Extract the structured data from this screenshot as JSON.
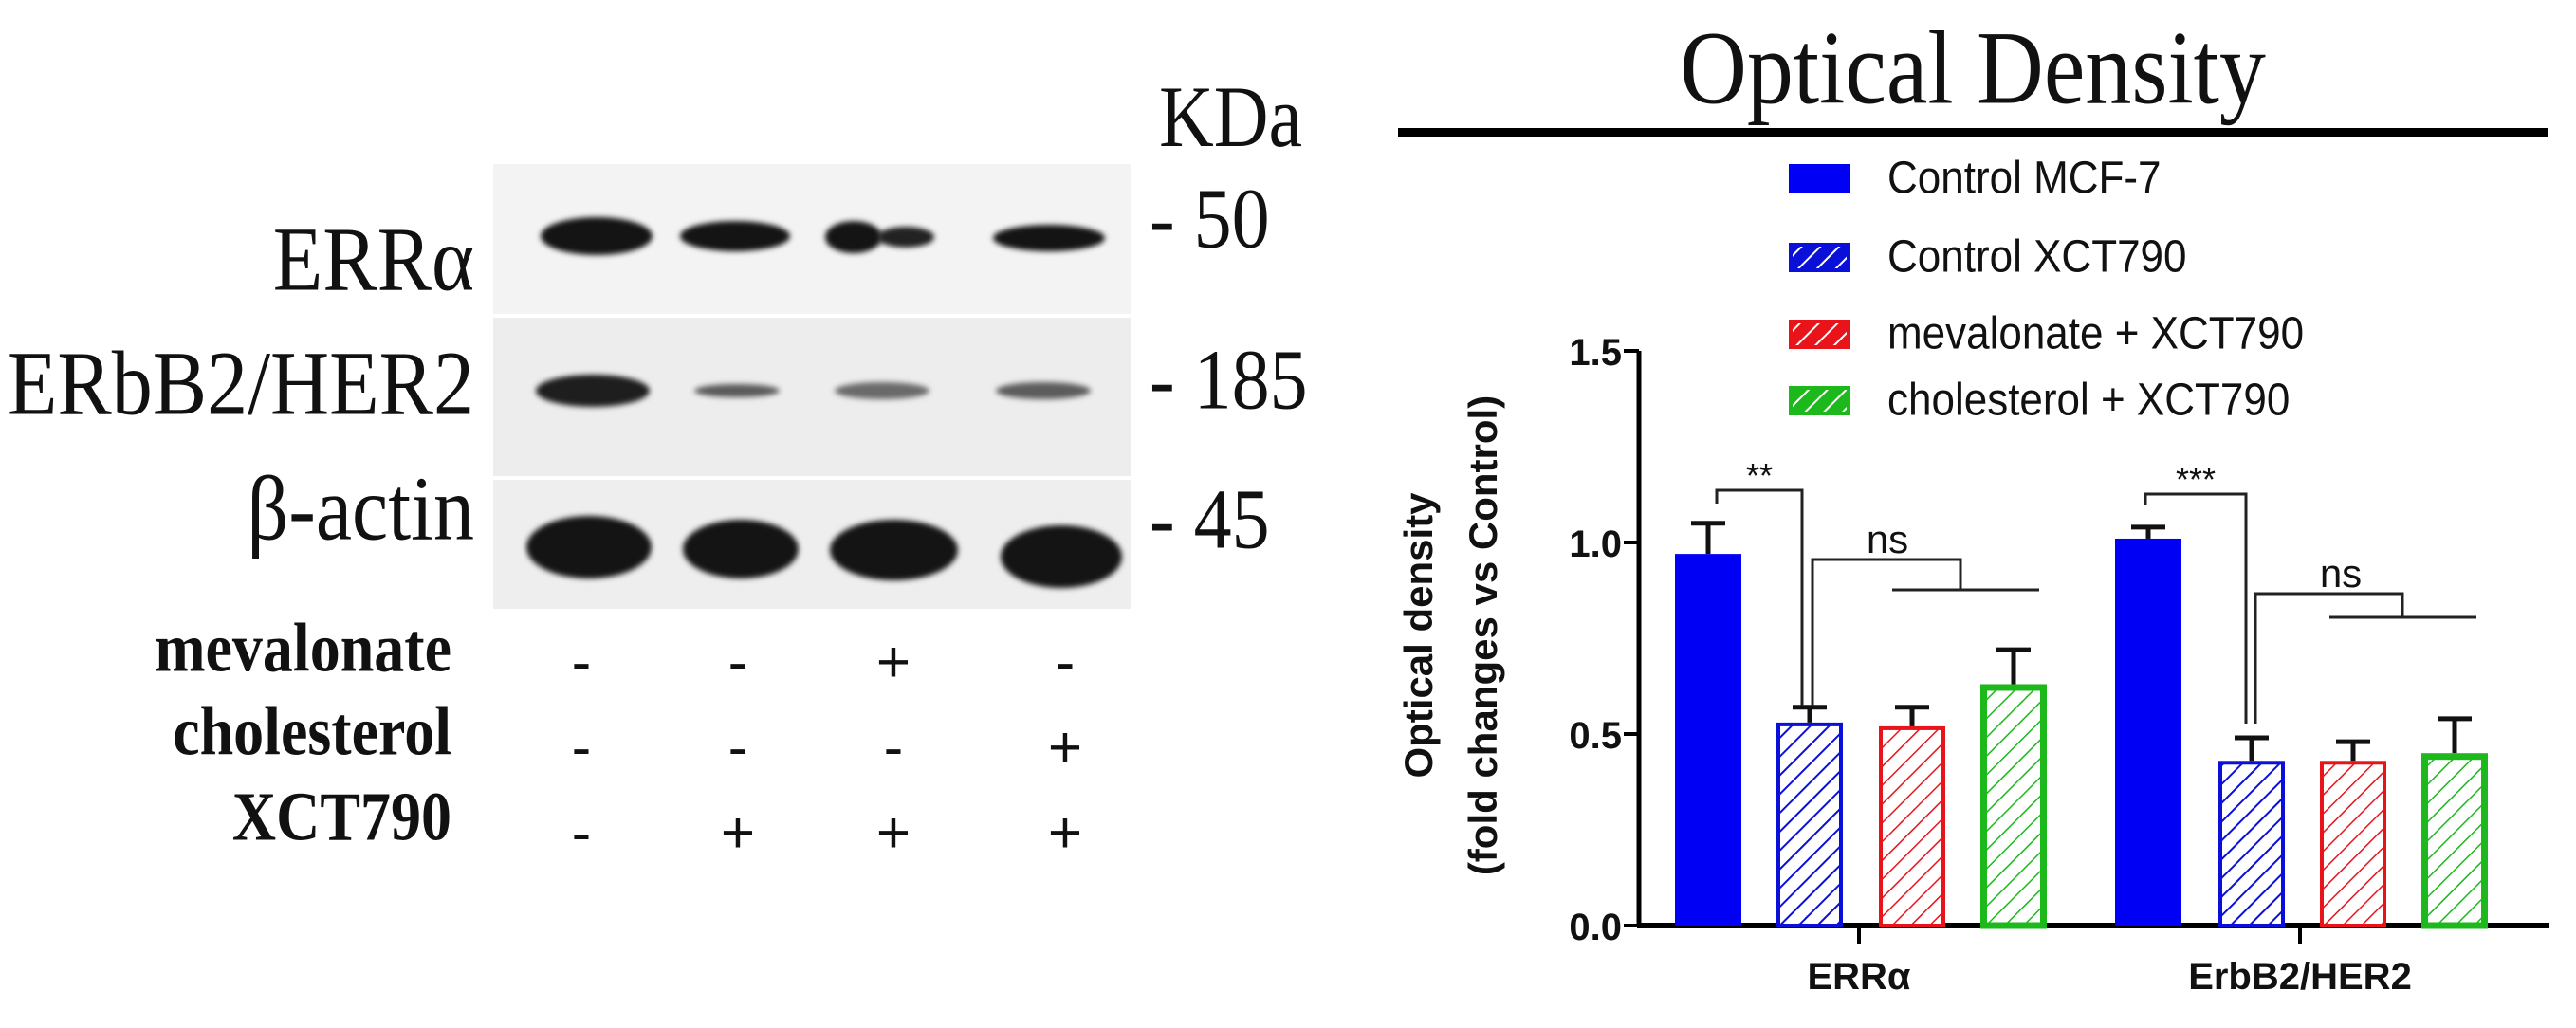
{
  "blot": {
    "kda_header": "KDa",
    "proteins": [
      {
        "label": "ERRα",
        "marker": "- 50"
      },
      {
        "label": "ERbB2/HER2",
        "marker": "- 185"
      },
      {
        "label": "β-actin",
        "marker": "- 45"
      }
    ],
    "treatments": [
      {
        "label": "mevalonate",
        "signs": [
          "-",
          "-",
          "+",
          "-"
        ]
      },
      {
        "label": "cholesterol",
        "signs": [
          "-",
          "-",
          "-",
          "+"
        ]
      },
      {
        "label": "XCT790",
        "signs": [
          "-",
          "+",
          "+",
          "+"
        ]
      }
    ]
  },
  "chart": {
    "title": "Optical Density",
    "ylabel_line1": "Optical density",
    "ylabel_line2": "(fold changes vs Control)",
    "ticks": [
      "0.0",
      "0.5",
      "1.0",
      "1.5"
    ],
    "categories": [
      "ERRα",
      "ErbB2/HER2"
    ],
    "legend": [
      {
        "label": "Control MCF-7",
        "color": "#0000f5",
        "hatched": false
      },
      {
        "label": "Control XCT790",
        "color": "#0a10d8",
        "hatched": true
      },
      {
        "label": "mevalonate + XCT790",
        "color": "#e8141a",
        "hatched": true
      },
      {
        "label": "cholesterol + XCT790",
        "color": "#1cb81c",
        "hatched": true
      }
    ],
    "significance": {
      "errα_vs_control": "**",
      "errα_treatments": "ns",
      "erbb2_vs_control": "***",
      "erbb2_treatments": "ns"
    }
  },
  "chart_data": {
    "type": "bar",
    "title": "Optical Density",
    "xlabel": "",
    "ylabel": "Optical density (fold changes vs Control)",
    "ylim": [
      0,
      1.5
    ],
    "yticks": [
      0.0,
      0.5,
      1.0,
      1.5
    ],
    "categories": [
      "ERRα",
      "ErbB2/HER2"
    ],
    "series": [
      {
        "name": "Control MCF-7",
        "values": [
          0.97,
          1.01
        ],
        "errors": [
          0.08,
          0.03
        ],
        "color": "#0000f5",
        "hatched": false
      },
      {
        "name": "Control XCT790",
        "values": [
          0.53,
          0.43
        ],
        "errors": [
          0.04,
          0.06
        ],
        "color": "#0a10d8",
        "hatched": true
      },
      {
        "name": "mevalonate + XCT790",
        "values": [
          0.52,
          0.43
        ],
        "errors": [
          0.05,
          0.05
        ],
        "color": "#e8141a",
        "hatched": true
      },
      {
        "name": "cholesterol + XCT790",
        "values": [
          0.63,
          0.45
        ],
        "errors": [
          0.09,
          0.09
        ],
        "color": "#1cb81c",
        "hatched": true
      }
    ],
    "annotations": [
      {
        "text": "**",
        "between": [
          "Control MCF-7",
          "Control XCT790"
        ],
        "category": "ERRα"
      },
      {
        "text": "ns",
        "between": [
          "Control XCT790",
          "mevalonate + XCT790 / cholesterol + XCT790"
        ],
        "category": "ERRα"
      },
      {
        "text": "***",
        "between": [
          "Control MCF-7",
          "Control XCT790"
        ],
        "category": "ErbB2/HER2"
      },
      {
        "text": "ns",
        "between": [
          "Control XCT790",
          "mevalonate + XCT790 / cholesterol + XCT790"
        ],
        "category": "ErbB2/HER2"
      }
    ],
    "grid": false,
    "legend_position": "top-right inside"
  }
}
